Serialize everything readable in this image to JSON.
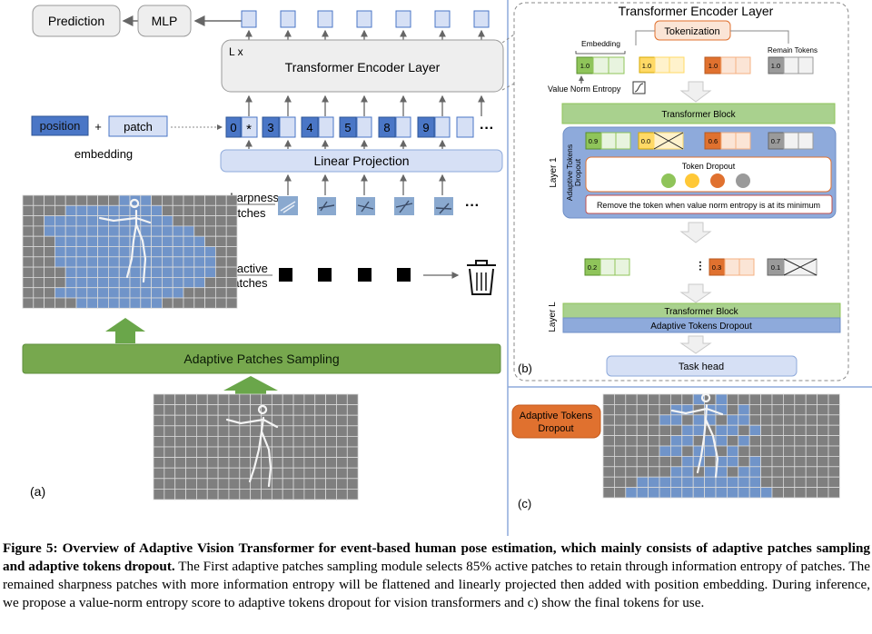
{
  "panel_a": {
    "prediction": "Prediction",
    "mlp": "MLP",
    "repeat": "L x",
    "encoder": "Transformer Encoder Layer",
    "position": "position",
    "plus": "+",
    "patch": "patch",
    "embedding": "embedding",
    "tokens": [
      "0",
      "*",
      "3",
      "4",
      "5",
      "8",
      "9"
    ],
    "ellipsis": "···",
    "linear": "Linear Projection",
    "sharpness": [
      "sharpness",
      "patches"
    ],
    "inactive": [
      "Inactive",
      "patches"
    ],
    "sampling": "Adaptive Patches Sampling",
    "label": "(a)"
  },
  "panel_b": {
    "title": "Transformer Encoder Layer",
    "tokenization": "Tokenization",
    "embedding": "Embedding",
    "remain": "Remain Tokens",
    "vne": "Value Norm Entropy",
    "row1": [
      "1.0",
      "1.0",
      "1.0",
      "1.0"
    ],
    "block": "Transformer Block",
    "layer1": "Layer 1",
    "atd_side": [
      "Adaptive Tokens",
      "Dropout"
    ],
    "row2": [
      "0.9",
      "0.0",
      "0.6",
      "0.7"
    ],
    "token_dropout": "Token Dropout",
    "remove": "Remove the token when value norm entropy is at its minimum",
    "row3": [
      "0.2",
      "0.3",
      "0.1"
    ],
    "layerL": "Layer L",
    "block2": "Transformer Block",
    "atd": "Adaptive Tokens Dropout",
    "task": "Task head",
    "label": "(b)"
  },
  "panel_c": {
    "atd": [
      "Adaptive Tokens",
      "Dropout"
    ],
    "label": "(c)"
  },
  "caption": {
    "bold": "Figure 5: Overview of Adaptive Vision Transformer for event-based human pose estimation, which mainly consists of adaptive patches sampling and adaptive tokens dropout.",
    "rest": " The First adaptive patches sampling module selects 85% active patches to retain through information entropy of patches. The remained sharpness patches with more information entropy will be flattened and linearly projected then added with position embedding. During inference, we propose a value-norm entropy score to adaptive tokens dropout for vision transformers and c) show the final tokens for use."
  },
  "colors": {
    "blue_token": "#4a76c6",
    "token_fill": "#d6e0f5",
    "green_bar": "#77a84e",
    "green_block": "#a9d18e",
    "orange": "#e0712f",
    "grid_gray": "#7f7f7f",
    "active_blue": "#7094c9"
  }
}
